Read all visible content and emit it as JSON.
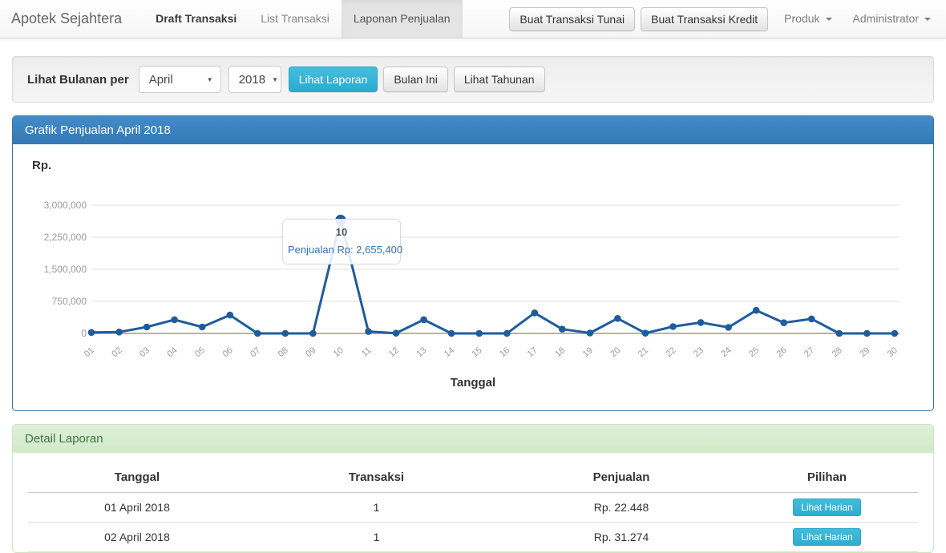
{
  "navbar": {
    "brand": "Apotek Sejahtera",
    "items": [
      {
        "label": "Draft Transaksi"
      },
      {
        "label": "List Transaksi"
      },
      {
        "label": "Laponan Penjualan"
      }
    ],
    "buttons": [
      {
        "label": "Buat Transaksi Tunai"
      },
      {
        "label": "Buat Transaksi Kredit"
      }
    ],
    "dropdowns": [
      {
        "label": "Produk"
      },
      {
        "label": "Administrator"
      }
    ]
  },
  "filter": {
    "label": "Lihat Bulanan per",
    "month_select": {
      "value": "April"
    },
    "year_select": {
      "value": "2018"
    },
    "buttons": [
      {
        "label": "Lihat Laporan",
        "style": "info"
      },
      {
        "label": "Bulan Ini",
        "style": "default"
      },
      {
        "label": "Lihat Tahunan",
        "style": "default"
      }
    ]
  },
  "chart_panel": {
    "title": "Grafik Penjualan April 2018",
    "y_unit_label": "Rp.",
    "x_axis_title": "Tanggal",
    "tooltip": {
      "title": "10",
      "text": "Penjualan Rp: 2,655,400"
    }
  },
  "chart_data": {
    "type": "line",
    "title": "Grafik Penjualan April 2018",
    "xlabel": "Tanggal",
    "ylabel": "Rp.",
    "x": [
      "01",
      "02",
      "03",
      "04",
      "05",
      "06",
      "07",
      "08",
      "09",
      "10",
      "11",
      "12",
      "13",
      "14",
      "15",
      "16",
      "17",
      "18",
      "19",
      "20",
      "21",
      "22",
      "23",
      "24",
      "25",
      "26",
      "27",
      "28",
      "29",
      "30"
    ],
    "series": [
      {
        "name": "Penjualan",
        "values": [
          22448,
          31274,
          150000,
          320000,
          150000,
          430000,
          0,
          0,
          0,
          2655400,
          45000,
          5000,
          320000,
          0,
          0,
          0,
          480000,
          100000,
          10000,
          350000,
          5000,
          160000,
          255000,
          140000,
          540000,
          250000,
          340000,
          0,
          0,
          0
        ]
      }
    ],
    "ylim": [
      0,
      3000000
    ],
    "yticks": [
      0,
      750000,
      1500000,
      2250000,
      3000000
    ],
    "ytick_labels": [
      "0",
      "750,000",
      "1,500,000",
      "2,250,000",
      "3,000,000"
    ],
    "grid": true,
    "legend": "none",
    "highlight": {
      "x": "10",
      "value": 2655400,
      "tooltip_title": "10",
      "tooltip_text": "Penjualan Rp: 2,655,400"
    },
    "line_color": "#1f5c9e",
    "grid_color": "#e2e2e2",
    "zero_line_color": "#d9a3a3",
    "tick_color": "#999999"
  },
  "detail_panel": {
    "title": "Detail Laporan",
    "table": {
      "headers": [
        "Tanggal",
        "Transaksi",
        "Penjualan",
        "Pilihan"
      ],
      "rows": [
        {
          "tanggal": "01 April 2018",
          "transaksi": "1",
          "penjualan": "Rp. 22.448",
          "action_label": "Lihat Harian"
        },
        {
          "tanggal": "02 April 2018",
          "transaksi": "1",
          "penjualan": "Rp. 31.274",
          "action_label": "Lihat Harian"
        }
      ]
    }
  },
  "colors": {
    "accent_blue": "#428bca",
    "info_teal": "#31b2d4",
    "success_green": "#3c763d",
    "success_bg": "#dff0d8",
    "navbar_active_bg": "#e4e4e4"
  }
}
